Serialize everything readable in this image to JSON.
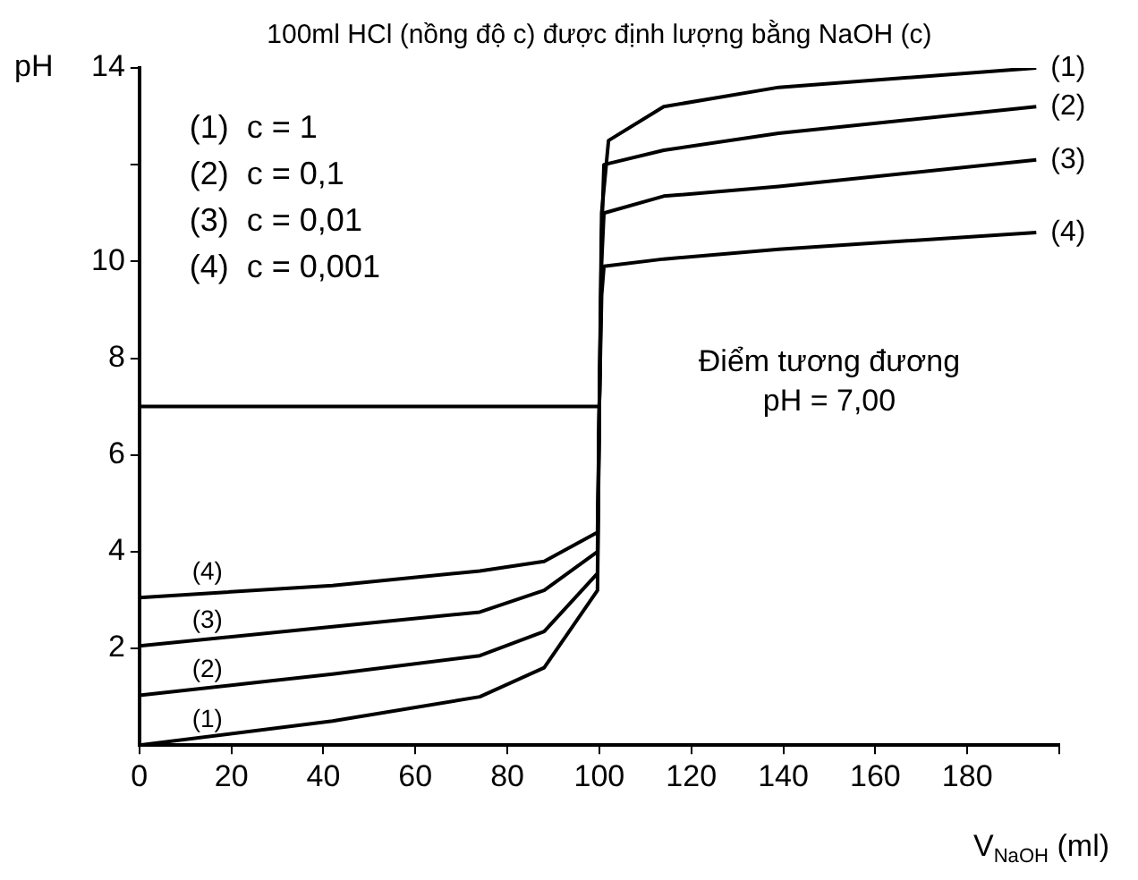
{
  "chart_data": {
    "type": "line",
    "title": "100ml HCl (nồng độ c) được định lượng bằng NaOH (c)",
    "xlabel": "V$_{NaOH}$ (ml)",
    "ylabel": "pH",
    "xlim": [
      0,
      200
    ],
    "xticks": [
      0,
      20,
      40,
      60,
      80,
      100,
      120,
      140,
      160,
      180,
      {
        "value": 200,
        "label": null
      }
    ],
    "ylim": [
      0,
      14
    ],
    "yticks": [
      2,
      4,
      6,
      8,
      10,
      {
        "value": 12,
        "label": null
      },
      14
    ],
    "grid": false,
    "legend": false,
    "marker": "none",
    "line_style": "solid",
    "series": [
      {
        "name": "(1)",
        "color": "#000000",
        "x": [
          0,
          42,
          74,
          88,
          99.6,
          100,
          100.5,
          102,
          114,
          139,
          195
        ],
        "values": [
          0,
          0.5,
          1.0,
          1.6,
          3.2,
          7,
          11.0,
          12.5,
          13.2,
          13.6,
          14.0
        ]
      },
      {
        "name": "(2)",
        "color": "#000000",
        "x": [
          0,
          42,
          74,
          88,
          99.6,
          100,
          100.5,
          101,
          114,
          139,
          195
        ],
        "values": [
          1.03,
          1.47,
          1.85,
          2.35,
          3.55,
          7,
          10.5,
          12.0,
          12.3,
          12.65,
          13.2
        ]
      },
      {
        "name": "(3)",
        "color": "#000000",
        "x": [
          0,
          42,
          74,
          88,
          99.6,
          100,
          100.5,
          101,
          114,
          139,
          195
        ],
        "values": [
          2.05,
          2.45,
          2.75,
          3.2,
          4.0,
          7,
          10.0,
          11.0,
          11.35,
          11.55,
          12.1
        ]
      },
      {
        "name": "(4)",
        "color": "#000000",
        "x": [
          0,
          42,
          74,
          88,
          99.6,
          100,
          100.5,
          101,
          114,
          139,
          195
        ],
        "values": [
          3.05,
          3.3,
          3.6,
          3.8,
          4.4,
          7,
          9.3,
          9.9,
          10.05,
          10.25,
          10.6
        ]
      },
      {
        "color": "#000000",
        "x": [
          0,
          100
        ],
        "values": [
          7,
          7
        ]
      }
    ],
    "annotations": [
      "(1)  c = 1",
      "(2)  c = 0,1",
      "(3)  c = 0,01",
      "(4)  c = 0,001",
      "Điểm tương đương",
      "pH = 7,00"
    ]
  }
}
